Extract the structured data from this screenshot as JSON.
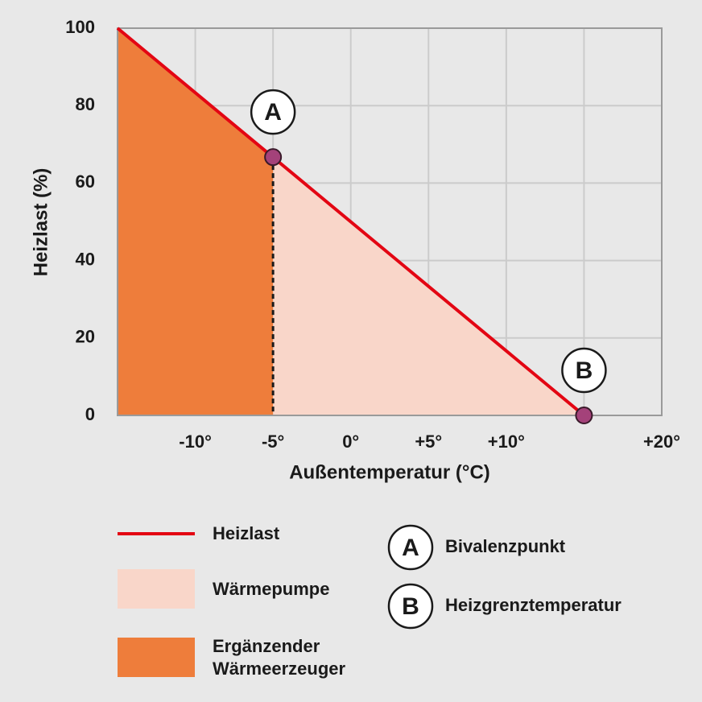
{
  "chart_data": {
    "type": "area",
    "ylabel": "Heizlast (%)",
    "xlabel": "Außentemperatur (°C)",
    "xlim": [
      -15,
      20
    ],
    "ylim": [
      0,
      100
    ],
    "xticks": [
      {
        "value": -10,
        "label": "-10°"
      },
      {
        "value": -5,
        "label": "-5°"
      },
      {
        "value": 0,
        "label": "0°"
      },
      {
        "value": 5,
        "label": "+5°"
      },
      {
        "value": 10,
        "label": "+10°"
      },
      {
        "value": 15,
        "label": null
      },
      {
        "value": 20,
        "label": "+20°"
      }
    ],
    "yticks": [
      0,
      20,
      40,
      60,
      80,
      100
    ],
    "grid": true,
    "series": [
      {
        "name": "Heizlast",
        "style": "line",
        "color": "#e30613",
        "x": [
          -15,
          15
        ],
        "values": [
          100,
          0
        ]
      },
      {
        "name": "Wärmepumpe",
        "style": "area",
        "color": "#f9d6c9",
        "x": [
          -5,
          15
        ],
        "values": [
          66.7,
          0
        ]
      },
      {
        "name": "Ergänzender Wärmeerzeuger",
        "style": "area",
        "color": "#ee7d3b",
        "x": [
          -15,
          -5
        ],
        "values": [
          100,
          66.7
        ]
      }
    ],
    "points": [
      {
        "label": "A",
        "name": "Bivalenzpunkt",
        "x": -5,
        "y": 66.7,
        "color": "#a4427a"
      },
      {
        "label": "B",
        "name": "Heizgrenztemperatur",
        "x": 15,
        "y": 0,
        "color": "#a4427a"
      }
    ]
  }
}
